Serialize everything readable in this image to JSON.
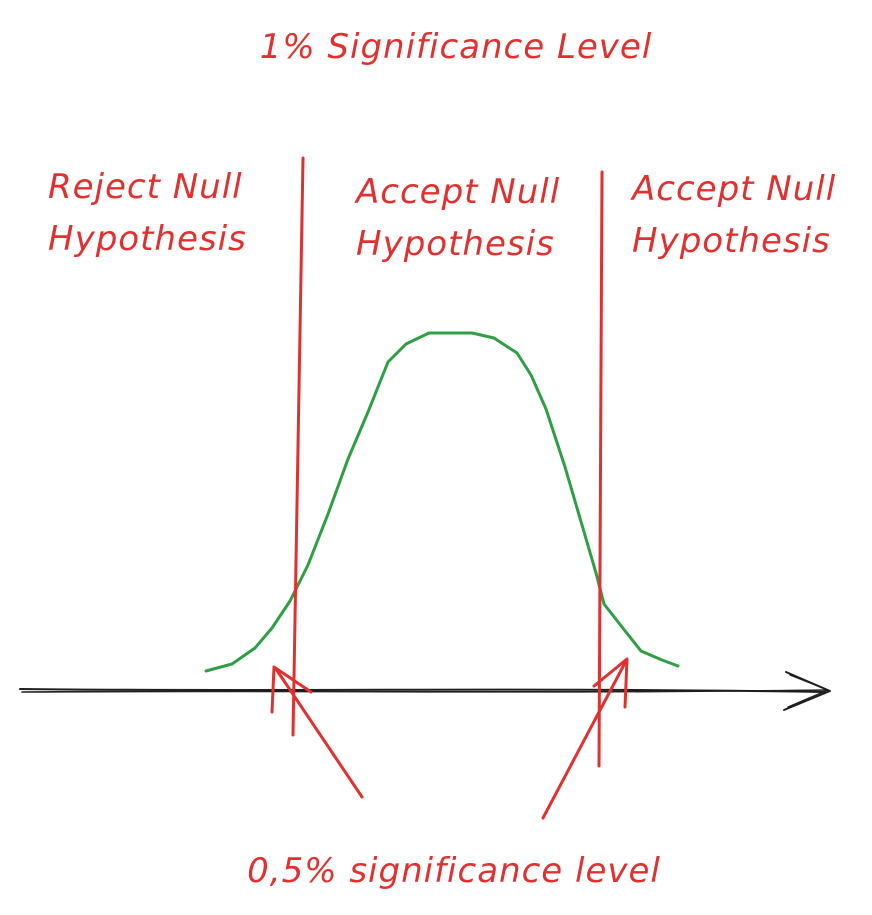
{
  "title": "1% Significance Level",
  "regions": {
    "left": [
      "Reject Null",
      "Hypothesis"
    ],
    "middle": [
      "Accept Null",
      "Hypothesis"
    ],
    "right": [
      "Accept Null",
      "Hypothesis"
    ]
  },
  "footer": "0,5% significance level",
  "colors": {
    "annotation": "#e03131",
    "curve": "#2f9e44",
    "axis": "#1e1e1e",
    "background": "#ffffff"
  }
}
